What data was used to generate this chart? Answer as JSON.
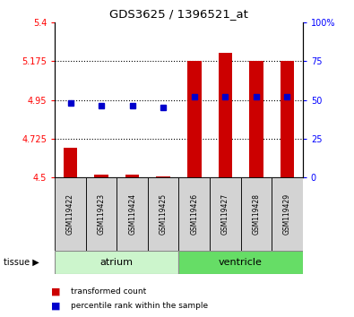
{
  "title": "GDS3625 / 1396521_at",
  "samples": [
    "GSM119422",
    "GSM119423",
    "GSM119424",
    "GSM119425",
    "GSM119426",
    "GSM119427",
    "GSM119428",
    "GSM119429"
  ],
  "red_values": [
    4.67,
    4.515,
    4.515,
    4.505,
    5.175,
    5.22,
    5.175,
    5.175
  ],
  "blue_values": [
    48.0,
    46.0,
    46.0,
    45.0,
    52.0,
    52.0,
    52.0,
    52.0
  ],
  "ylim_left": [
    4.5,
    5.4
  ],
  "ylim_right": [
    0,
    100
  ],
  "yticks_left": [
    4.5,
    4.725,
    4.95,
    5.175,
    5.4
  ],
  "yticks_right": [
    0,
    25,
    50,
    75,
    100
  ],
  "ytick_labels_left": [
    "4.5",
    "4.725",
    "4.95",
    "5.175",
    "5.4"
  ],
  "ytick_labels_right": [
    "0",
    "25",
    "50",
    "75",
    "100%"
  ],
  "gridlines": [
    4.725,
    4.95,
    5.175
  ],
  "bar_color": "#cc0000",
  "dot_color": "#0000cc",
  "bar_bottom": 4.5,
  "atrium_color": "#ccf5cc",
  "ventricle_color": "#66dd66",
  "sample_box_color": "#d3d3d3",
  "legend_red": "transformed count",
  "legend_blue": "percentile rank within the sample",
  "n_atrium": 4,
  "n_ventricle": 4
}
